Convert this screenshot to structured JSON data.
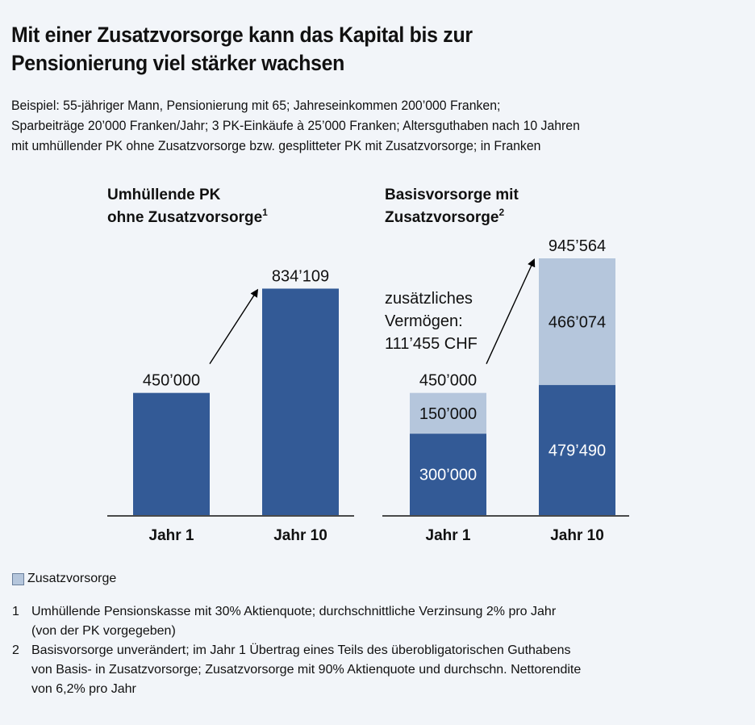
{
  "title_lines": [
    "Mit einer Zusatzvorsorge kann das Kapital bis zur",
    "Pensionierung viel stärker wachsen"
  ],
  "subtitle_lines": [
    "Beispiel: 55-jähriger Mann, Pensionierung mit 65; Jahreseinkommen 200’000 Franken;",
    "Sparbeiträge 20’000 Franken/Jahr; 3 PK-Einkäufe à 25’000 Franken; Altersguthaben nach 10 Jahren",
    "mit umhüllender PK ohne Zusatzvorsorge bzw. gesplitteter PK mit Zusatzvorsorge; in Franken"
  ],
  "colors": {
    "basis": "#335a96",
    "zusatz": "#b5c6dc",
    "background": "#f2f5f9"
  },
  "chart_data": [
    {
      "type": "bar",
      "title_lines": [
        "Umhüllende PK",
        "ohne Zusatzvorsorge"
      ],
      "footnote_ref": "1",
      "categories": [
        "Jahr 1",
        "Jahr 10"
      ],
      "series": [
        {
          "name": "Basisvorsorge",
          "values": [
            450000,
            834109
          ],
          "labels": [
            "",
            ""
          ]
        }
      ],
      "total_labels": [
        "450’000",
        "834’109"
      ],
      "ylim": [
        0,
        1000000
      ],
      "grid": false
    },
    {
      "type": "bar",
      "stacked": true,
      "title_lines": [
        "Basisvorsorge mit",
        "Zusatzvorsorge"
      ],
      "footnote_ref": "2",
      "categories": [
        "Jahr 1",
        "Jahr 10"
      ],
      "series": [
        {
          "name": "Basisvorsorge",
          "values": [
            300000,
            479490
          ],
          "labels": [
            "300’000",
            "479’490"
          ]
        },
        {
          "name": "Zusatzvorsorge",
          "values": [
            150000,
            466074
          ],
          "labels": [
            "150’000",
            "466’074"
          ]
        }
      ],
      "total_labels": [
        "450’000",
        "945’564"
      ],
      "annotation_lines": [
        "zusätzliches",
        "Vermögen:",
        "111’455 CHF"
      ],
      "ylim": [
        0,
        1000000
      ],
      "grid": false
    }
  ],
  "legend": {
    "label": "Zusatzvorsorge"
  },
  "footnotes": [
    {
      "num": "1",
      "lines": [
        "Umhüllende Pensionskasse mit 30% Aktienquote; durchschnittliche Verzinsung 2% pro Jahr",
        "(von der PK vorgegeben)"
      ]
    },
    {
      "num": "2",
      "lines": [
        "Basisvorsorge unverändert; im Jahr 1 Übertrag eines Teils des überobligatorischen Guthabens",
        "von Basis- in Zusatzvorsorge; Zusatzvorsorge mit 90% Aktienquote und durchschn. Nettorendite",
        "von 6,2% pro Jahr"
      ]
    }
  ]
}
